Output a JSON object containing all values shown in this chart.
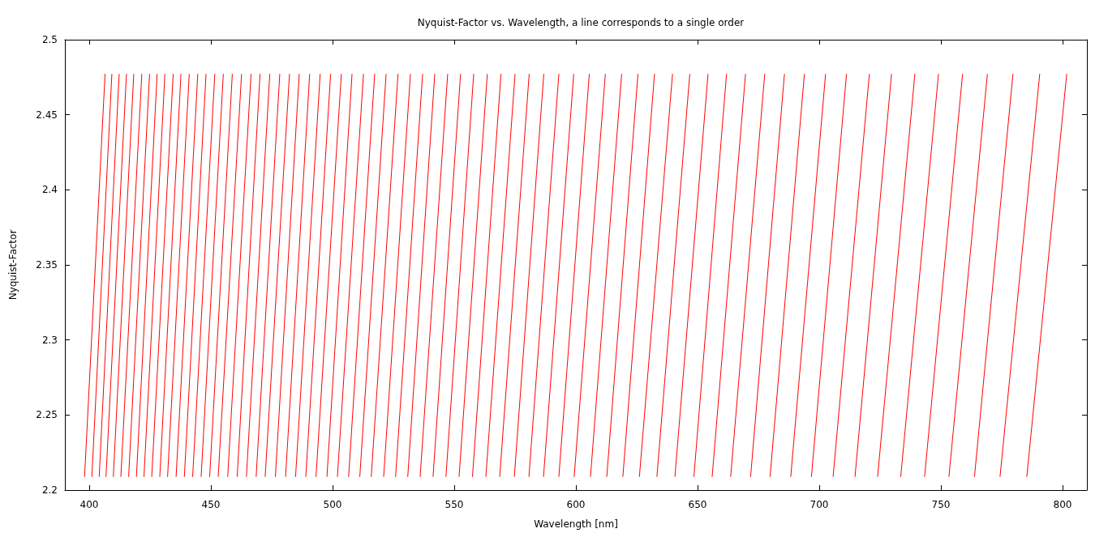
{
  "chart_data": {
    "type": "line",
    "title": "Nyquist-Factor vs. Wavelength, a line corresponds to a single order",
    "xlabel": "Wavelength [nm]",
    "ylabel": "Nyquist-Factor",
    "xlim": [
      390,
      810
    ],
    "ylim": [
      2.2,
      2.5
    ],
    "xticks": [
      400,
      450,
      500,
      550,
      600,
      650,
      700,
      750,
      800
    ],
    "yticks": [
      2.2,
      2.25,
      2.3,
      2.35,
      2.4,
      2.45,
      2.5
    ],
    "series": [
      {
        "color": "#ff0000",
        "x": [
          398.1,
          406.5
        ],
        "values": [
          2.209,
          2.477
        ]
      },
      {
        "color": "#ff0000",
        "x": [
          401.1,
          409.3
        ],
        "values": [
          2.209,
          2.477
        ]
      },
      {
        "color": "#ff0000",
        "x": [
          404.1,
          412.3
        ],
        "values": [
          2.209,
          2.477
        ]
      },
      {
        "color": "#ff0000",
        "x": [
          406.9,
          415.3
        ],
        "values": [
          2.209,
          2.477
        ]
      },
      {
        "color": "#ff0000",
        "x": [
          409.9,
          418.3
        ],
        "values": [
          2.209,
          2.477
        ]
      },
      {
        "color": "#ff0000",
        "x": [
          413.0,
          421.6
        ],
        "values": [
          2.209,
          2.477
        ]
      },
      {
        "color": "#ff0000",
        "x": [
          416.2,
          424.8
        ],
        "values": [
          2.209,
          2.477
        ]
      },
      {
        "color": "#ff0000",
        "x": [
          419.4,
          427.9
        ],
        "values": [
          2.209,
          2.477
        ]
      },
      {
        "color": "#ff0000",
        "x": [
          422.5,
          431.1
        ],
        "values": [
          2.209,
          2.477
        ]
      },
      {
        "color": "#ff0000",
        "x": [
          425.7,
          434.5
        ],
        "values": [
          2.209,
          2.477
        ]
      },
      {
        "color": "#ff0000",
        "x": [
          429.0,
          437.7
        ],
        "values": [
          2.209,
          2.477
        ]
      },
      {
        "color": "#ff0000",
        "x": [
          432.2,
          441.1
        ],
        "values": [
          2.209,
          2.477
        ]
      },
      {
        "color": "#ff0000",
        "x": [
          435.7,
          444.6
        ],
        "values": [
          2.209,
          2.477
        ]
      },
      {
        "color": "#ff0000",
        "x": [
          439.1,
          448.0
        ],
        "values": [
          2.209,
          2.477
        ]
      },
      {
        "color": "#ff0000",
        "x": [
          442.5,
          451.6
        ],
        "values": [
          2.209,
          2.477
        ]
      },
      {
        "color": "#ff0000",
        "x": [
          446.0,
          455.1
        ],
        "values": [
          2.209,
          2.477
        ]
      },
      {
        "color": "#ff0000",
        "x": [
          449.5,
          458.8
        ],
        "values": [
          2.209,
          2.477
        ]
      },
      {
        "color": "#ff0000",
        "x": [
          453.0,
          462.6
        ],
        "values": [
          2.209,
          2.477
        ]
      },
      {
        "color": "#ff0000",
        "x": [
          456.9,
          466.5
        ],
        "values": [
          2.209,
          2.477
        ]
      },
      {
        "color": "#ff0000",
        "x": [
          460.8,
          470.2
        ],
        "values": [
          2.209,
          2.477
        ]
      },
      {
        "color": "#ff0000",
        "x": [
          464.6,
          474.2
        ],
        "values": [
          2.209,
          2.477
        ]
      },
      {
        "color": "#ff0000",
        "x": [
          468.6,
          478.3
        ],
        "values": [
          2.209,
          2.477
        ]
      },
      {
        "color": "#ff0000",
        "x": [
          472.3,
          482.3
        ],
        "values": [
          2.209,
          2.477
        ]
      },
      {
        "color": "#ff0000",
        "x": [
          476.5,
          486.3
        ],
        "values": [
          2.209,
          2.477
        ]
      },
      {
        "color": "#ff0000",
        "x": [
          480.7,
          490.6
        ],
        "values": [
          2.209,
          2.477
        ]
      },
      {
        "color": "#ff0000",
        "x": [
          484.8,
          494.9
        ],
        "values": [
          2.209,
          2.477
        ]
      },
      {
        "color": "#ff0000",
        "x": [
          489.0,
          499.2
        ],
        "values": [
          2.209,
          2.477
        ]
      },
      {
        "color": "#ff0000",
        "x": [
          493.2,
          503.6
        ],
        "values": [
          2.209,
          2.477
        ]
      },
      {
        "color": "#ff0000",
        "x": [
          497.7,
          508.0
        ],
        "values": [
          2.209,
          2.477
        ]
      },
      {
        "color": "#ff0000",
        "x": [
          502.0,
          512.7
        ],
        "values": [
          2.209,
          2.477
        ]
      },
      {
        "color": "#ff0000",
        "x": [
          506.6,
          517.3
        ],
        "values": [
          2.209,
          2.477
        ]
      },
      {
        "color": "#ff0000",
        "x": [
          511.2,
          522.0
        ],
        "values": [
          2.209,
          2.477
        ]
      },
      {
        "color": "#ff0000",
        "x": [
          515.9,
          526.9
        ],
        "values": [
          2.209,
          2.477
        ]
      },
      {
        "color": "#ff0000",
        "x": [
          521.0,
          532.0
        ],
        "values": [
          2.209,
          2.477
        ]
      },
      {
        "color": "#ff0000",
        "x": [
          525.9,
          537.0
        ],
        "values": [
          2.209,
          2.477
        ]
      },
      {
        "color": "#ff0000",
        "x": [
          530.9,
          542.0
        ],
        "values": [
          2.209,
          2.477
        ]
      },
      {
        "color": "#ff0000",
        "x": [
          536.0,
          547.3
        ],
        "values": [
          2.209,
          2.477
        ]
      },
      {
        "color": "#ff0000",
        "x": [
          541.3,
          552.6
        ],
        "values": [
          2.209,
          2.477
        ]
      },
      {
        "color": "#ff0000",
        "x": [
          546.6,
          558.0
        ],
        "values": [
          2.209,
          2.477
        ]
      },
      {
        "color": "#ff0000",
        "x": [
          552.0,
          563.6
        ],
        "values": [
          2.209,
          2.477
        ]
      },
      {
        "color": "#ff0000",
        "x": [
          557.5,
          569.2
        ],
        "values": [
          2.209,
          2.477
        ]
      },
      {
        "color": "#ff0000",
        "x": [
          563.0,
          575.0
        ],
        "values": [
          2.209,
          2.477
        ]
      },
      {
        "color": "#ff0000",
        "x": [
          568.7,
          580.8
        ],
        "values": [
          2.209,
          2.477
        ]
      },
      {
        "color": "#ff0000",
        "x": [
          574.7,
          586.8
        ],
        "values": [
          2.209,
          2.477
        ]
      },
      {
        "color": "#ff0000",
        "x": [
          580.7,
          593.0
        ],
        "values": [
          2.209,
          2.477
        ]
      },
      {
        "color": "#ff0000",
        "x": [
          586.7,
          599.1
        ],
        "values": [
          2.209,
          2.477
        ]
      },
      {
        "color": "#ff0000",
        "x": [
          593.0,
          605.5
        ],
        "values": [
          2.209,
          2.477
        ]
      },
      {
        "color": "#ff0000",
        "x": [
          599.3,
          612.1
        ],
        "values": [
          2.209,
          2.477
        ]
      },
      {
        "color": "#ff0000",
        "x": [
          606.0,
          618.8
        ],
        "values": [
          2.209,
          2.477
        ]
      },
      {
        "color": "#ff0000",
        "x": [
          612.7,
          625.5
        ],
        "values": [
          2.209,
          2.477
        ]
      },
      {
        "color": "#ff0000",
        "x": [
          619.3,
          632.3
        ],
        "values": [
          2.209,
          2.477
        ]
      },
      {
        "color": "#ff0000",
        "x": [
          626.1,
          639.7
        ],
        "values": [
          2.209,
          2.477
        ]
      },
      {
        "color": "#ff0000",
        "x": [
          633.3,
          646.8
        ],
        "values": [
          2.209,
          2.477
        ]
      },
      {
        "color": "#ff0000",
        "x": [
          640.7,
          654.3
        ],
        "values": [
          2.209,
          2.477
        ]
      },
      {
        "color": "#ff0000",
        "x": [
          648.5,
          661.9
        ],
        "values": [
          2.209,
          2.477
        ]
      },
      {
        "color": "#ff0000",
        "x": [
          656.0,
          669.7
        ],
        "values": [
          2.209,
          2.477
        ]
      },
      {
        "color": "#ff0000",
        "x": [
          663.6,
          677.6
        ],
        "values": [
          2.209,
          2.477
        ]
      },
      {
        "color": "#ff0000",
        "x": [
          671.8,
          685.7
        ],
        "values": [
          2.209,
          2.477
        ]
      },
      {
        "color": "#ff0000",
        "x": [
          679.8,
          693.9
        ],
        "values": [
          2.209,
          2.477
        ]
      },
      {
        "color": "#ff0000",
        "x": [
          688.3,
          702.6
        ],
        "values": [
          2.209,
          2.477
        ]
      },
      {
        "color": "#ff0000",
        "x": [
          696.8,
          711.2
        ],
        "values": [
          2.209,
          2.477
        ]
      },
      {
        "color": "#ff0000",
        "x": [
          705.7,
          720.6
        ],
        "values": [
          2.209,
          2.477
        ]
      },
      {
        "color": "#ff0000",
        "x": [
          714.7,
          729.7
        ],
        "values": [
          2.209,
          2.477
        ]
      },
      {
        "color": "#ff0000",
        "x": [
          724.0,
          739.3
        ],
        "values": [
          2.209,
          2.477
        ]
      },
      {
        "color": "#ff0000",
        "x": [
          733.5,
          749.0
        ],
        "values": [
          2.209,
          2.477
        ]
      },
      {
        "color": "#ff0000",
        "x": [
          743.3,
          758.9
        ],
        "values": [
          2.209,
          2.477
        ]
      },
      {
        "color": "#ff0000",
        "x": [
          753.3,
          769.1
        ],
        "values": [
          2.209,
          2.477
        ]
      },
      {
        "color": "#ff0000",
        "x": [
          763.8,
          779.6
        ],
        "values": [
          2.209,
          2.477
        ]
      },
      {
        "color": "#ff0000",
        "x": [
          774.3,
          790.6
        ],
        "values": [
          2.209,
          2.477
        ]
      },
      {
        "color": "#ff0000",
        "x": [
          785.3,
          801.7
        ],
        "values": [
          2.209,
          2.477
        ]
      }
    ]
  }
}
